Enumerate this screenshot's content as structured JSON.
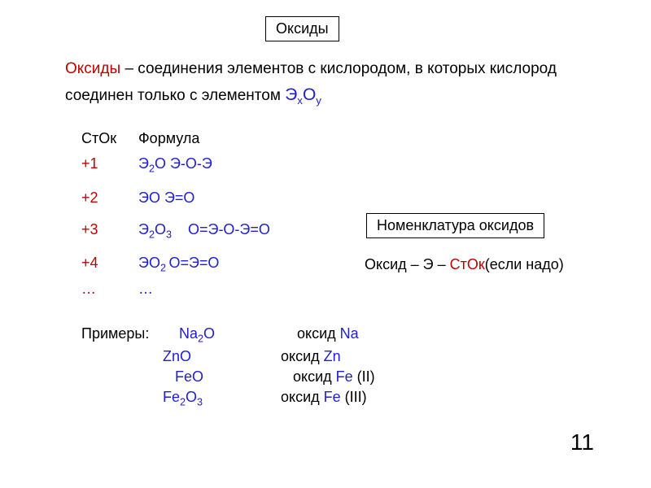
{
  "title_box": "Оксиды",
  "definition": {
    "term": "Оксиды",
    "dash": " – ",
    "text1": "соединения элементов с кислородом, в которых кислород соединен только с элементом ",
    "formula_e": "Э",
    "formula_x": "x",
    "formula_o": "О",
    "formula_y": "y"
  },
  "headers": {
    "stok": "СтОк",
    "formula": "Формула"
  },
  "rows": [
    {
      "stok": "+1",
      "formula_html": "Э<sub>2</sub>О Э-О-Э"
    },
    {
      "stok": "+2",
      "formula_html": "ЭО  Э=О"
    },
    {
      "stok": "+3",
      "formula_html": "Э<sub>2</sub>О<sub>3</sub>&nbsp;&nbsp;&nbsp;&nbsp;О=Э-О-Э=О"
    },
    {
      "stok": "+4",
      "formula_html": "ЭО<sub>2 </sub>О=Э=О"
    }
  ],
  "ellipsis": "…",
  "nomen_box": "Номенклатура оксидов",
  "naming": {
    "pre": "Оксид – Э – ",
    "stok": "СтОк",
    "post": "(если надо)"
  },
  "examples_label": "Примеры:",
  "examples": [
    {
      "f_html": "Na<sub>2</sub>O",
      "n_pre": "оксид ",
      "n_el": "Na",
      "n_suf": "",
      "pad": 20
    },
    {
      "f_html": "ZnO",
      "n_pre": "оксид ",
      "n_el": "Zn",
      "n_suf": "",
      "pad": 0
    },
    {
      "f_html": "FeO",
      "n_pre": "оксид ",
      "n_el": "Fe",
      "n_suf": " (II)",
      "pad": 15
    },
    {
      "f_html": "Fe<sub>2</sub>O<sub>3</sub>",
      "n_pre": "оксид ",
      "n_el": "Fe",
      "n_suf": " (III)",
      "pad": 0
    }
  ],
  "page_number": "11",
  "colors": {
    "red": "#c00000",
    "blue": "#2020d0",
    "black": "#000000"
  }
}
